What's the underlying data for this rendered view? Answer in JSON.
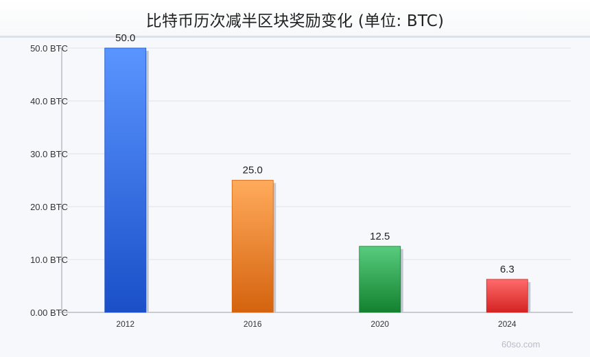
{
  "title": "比特币历次减半区块奖励变化 (单位: BTC)",
  "watermark": "60so.com",
  "chart_data": {
    "type": "bar",
    "title": "比特币历次减半区块奖励变化 (单位: BTC)",
    "categories": [
      "2012",
      "2016",
      "2020",
      "2024"
    ],
    "values": [
      50.0,
      25.0,
      12.5,
      6.25
    ],
    "value_labels": [
      "50.0",
      "25.0",
      "12.5",
      "6.3"
    ],
    "xlabel": "",
    "ylabel": "",
    "ylim": [
      0,
      50
    ],
    "y_ticks": [
      0,
      10,
      20,
      30,
      40,
      50
    ],
    "y_tick_labels": [
      "0.00 BTC",
      "10.0 BTC",
      "20.0 BTC",
      "30.0 BTC",
      "40.0 BTC",
      "50.0 BTC"
    ],
    "grid": true,
    "legend": "none",
    "bar_colors": [
      [
        "#5a95ff",
        "#1a4fc8"
      ],
      [
        "#ffab5c",
        "#d4630e"
      ],
      [
        "#58cc7e",
        "#13812f"
      ],
      [
        "#ff6b6b",
        "#d42222"
      ]
    ]
  }
}
